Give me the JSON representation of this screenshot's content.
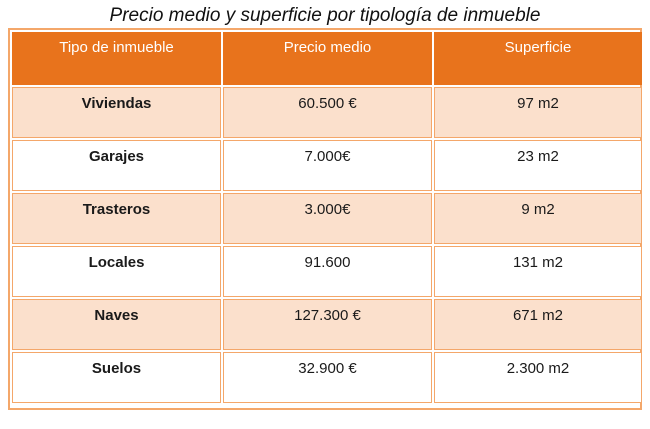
{
  "title": "Precio medio y superficie por tipología de inmueble",
  "headers": [
    "Tipo de inmueble",
    "Precio medio",
    "Superficie"
  ],
  "rows": [
    {
      "tipo": "Viviendas",
      "precio": "60.500 €",
      "superficie": "97 m2"
    },
    {
      "tipo": "Garajes",
      "precio": "7.000€",
      "superficie": "23 m2"
    },
    {
      "tipo": "Trasteros",
      "precio": "3.000€",
      "superficie": "9 m2"
    },
    {
      "tipo": "Locales",
      "precio": "91.600",
      "superficie": "131 m2"
    },
    {
      "tipo": "Naves",
      "precio": "127.300 €",
      "superficie": "671 m2"
    },
    {
      "tipo": "Suelos",
      "precio": "32.900 €",
      "superficie": "2.300 m2"
    }
  ],
  "colors": {
    "header_bg": "#e8731c",
    "band_bg": "#fbe0cc",
    "border": "#f4a76a"
  }
}
